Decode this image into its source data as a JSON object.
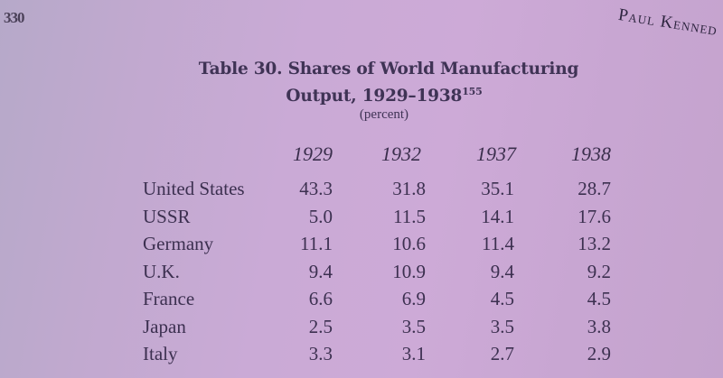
{
  "page": {
    "number": "330",
    "running_head": "Paul Kenned"
  },
  "table": {
    "title_line1": "Table 30. Shares of World Manufacturing",
    "title_line2": "Output, 1929–1938",
    "footnote_ref": "155",
    "unit": "(percent)",
    "columns": [
      "1929",
      "1932",
      "1937",
      "1938"
    ],
    "rows": [
      {
        "country": "United States",
        "values": [
          "43.3",
          "31.8",
          "35.1",
          "28.7"
        ]
      },
      {
        "country": "USSR",
        "values": [
          "5.0",
          "11.5",
          "14.1",
          "17.6"
        ]
      },
      {
        "country": "Germany",
        "values": [
          "11.1",
          "10.6",
          "11.4",
          "13.2"
        ]
      },
      {
        "country": "U.K.",
        "values": [
          "9.4",
          "10.9",
          "9.4",
          "9.2"
        ]
      },
      {
        "country": "France",
        "values": [
          "6.6",
          "6.9",
          "4.5",
          "4.5"
        ]
      },
      {
        "country": "Japan",
        "values": [
          "2.5",
          "3.5",
          "3.5",
          "3.8"
        ]
      },
      {
        "country": "Italy",
        "values": [
          "3.3",
          "3.1",
          "2.7",
          "2.9"
        ]
      }
    ]
  }
}
